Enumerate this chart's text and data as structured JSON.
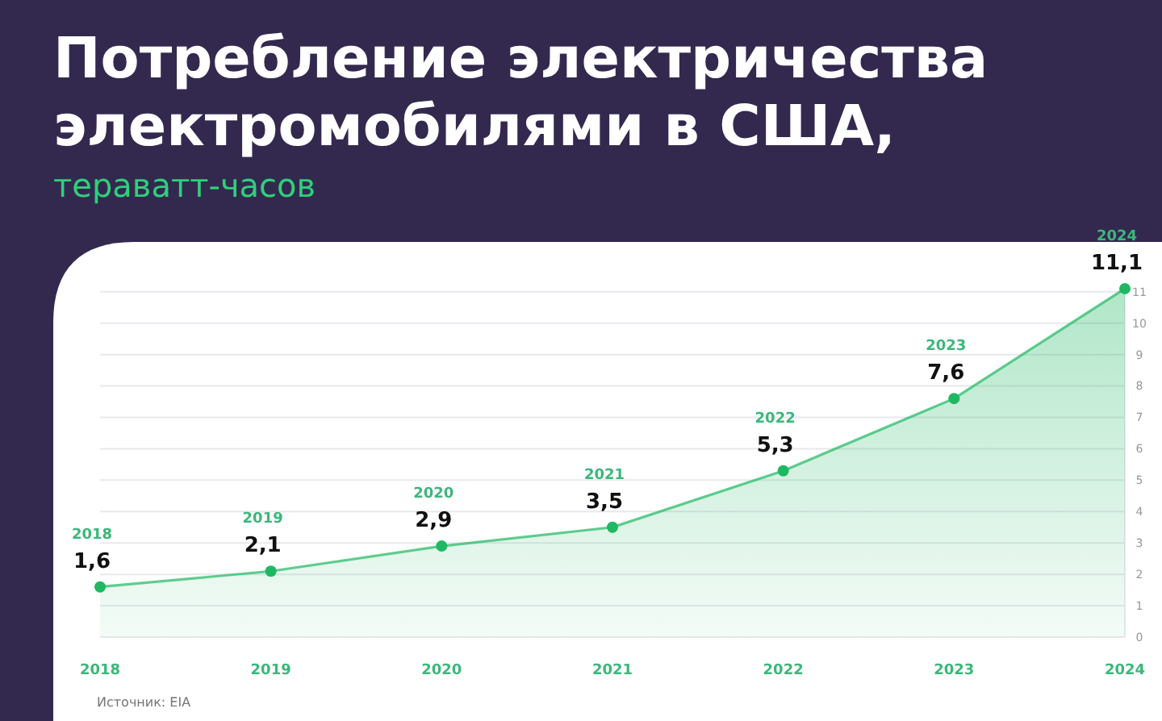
{
  "chart_data": {
    "type": "area",
    "title": "Потребление электричества электромобилями в США,",
    "subtitle": "тераватт-часов",
    "categories": [
      "2018",
      "2019",
      "2020",
      "2021",
      "2022",
      "2023",
      "2024"
    ],
    "series": [
      {
        "color": "#1fb862",
        "values": [
          1.6,
          2.1,
          2.9,
          3.5,
          5.3,
          7.6,
          11.1
        ]
      }
    ],
    "value_labels": [
      "1,6",
      "2,1",
      "2,9",
      "3,5",
      "5,3",
      "7,6",
      "11,1"
    ],
    "ylim": [
      0,
      11.2
    ],
    "yticks": [
      0,
      1,
      2,
      3,
      4,
      5,
      6,
      7,
      8,
      9,
      10,
      11
    ],
    "grid": "y",
    "marker": "circle",
    "annotations": [
      "Источник: EIA"
    ]
  }
}
